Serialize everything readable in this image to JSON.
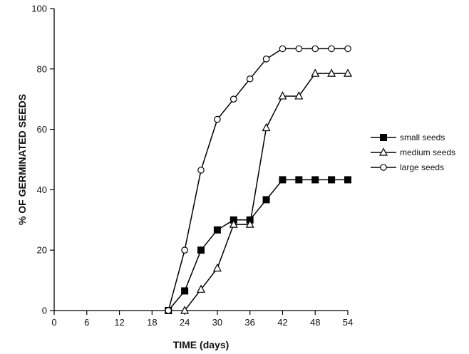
{
  "chart_data": {
    "type": "line",
    "xlabel": "TIME (days)",
    "ylabel": "% OF GERMINATED SEEDS",
    "xlim": [
      0,
      54
    ],
    "ylim": [
      0,
      100
    ],
    "xticks": [
      0,
      6,
      12,
      18,
      24,
      30,
      36,
      42,
      48,
      54
    ],
    "yticks": [
      0,
      20,
      40,
      60,
      80,
      100
    ],
    "grid": false,
    "legend_position": "right",
    "series": [
      {
        "name": "small seeds",
        "marker": "filled-square",
        "color": "#000000",
        "x": [
          21,
          24,
          27,
          30,
          33,
          36,
          39,
          42,
          45,
          48,
          51,
          54
        ],
        "y": [
          0,
          6.5,
          20,
          26.7,
          30,
          30,
          36.7,
          43.3,
          43.3,
          43.3,
          43.3,
          43.3
        ]
      },
      {
        "name": "medium seeds",
        "marker": "open-triangle",
        "color": "#000000",
        "x": [
          24,
          27,
          30,
          33,
          36,
          39,
          42,
          45,
          48,
          51,
          54
        ],
        "y": [
          0,
          7,
          14,
          28.5,
          28.5,
          60.5,
          71,
          71,
          78.5,
          78.5,
          78.5
        ]
      },
      {
        "name": "large seeds",
        "marker": "open-circle",
        "color": "#000000",
        "x": [
          21,
          24,
          27,
          30,
          33,
          36,
          39,
          42,
          45,
          48,
          51,
          54
        ],
        "y": [
          0,
          20,
          46.5,
          63.3,
          70,
          76.7,
          83.3,
          86.7,
          86.7,
          86.7,
          86.7,
          86.7
        ]
      }
    ]
  }
}
